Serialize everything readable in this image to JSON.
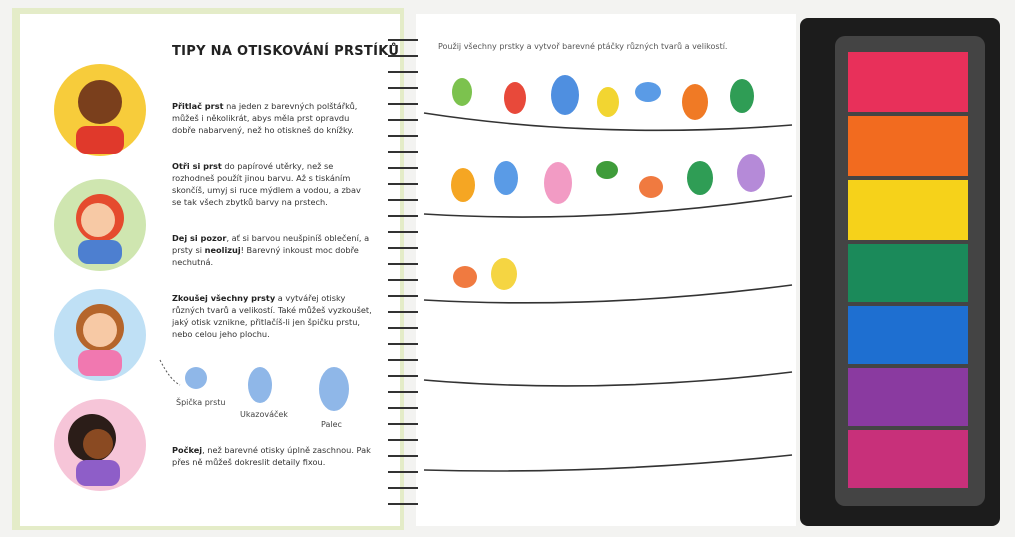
{
  "left_page": {
    "title": "TIPY NA OTISKOVÁNÍ PRSTÍKŮ",
    "tips": [
      {
        "parts": [
          {
            "text": "Přitlač prst",
            "bold": true
          },
          {
            "text": " na jeden z barevných polštářků, můžeš i několikrát, abys měla prst opravdu dobře nabarvený, než ho otiskneš do knížky.",
            "bold": false
          }
        ]
      },
      {
        "parts": [
          {
            "text": "Otři si prst",
            "bold": true
          },
          {
            "text": " do papírové utěrky, než se rozhodneš použít jinou barvu. Až s tiskáním skončíš, umyj si ruce mýdlem a vodou, a zbav se tak všech zbytků barvy na prstech.",
            "bold": false
          }
        ]
      },
      {
        "parts": [
          {
            "text": "Dej si pozor",
            "bold": true
          },
          {
            "text": ", ať si barvou neušpiníš oblečení, a prsty si ",
            "bold": false
          },
          {
            "text": "neolizuj",
            "bold": true
          },
          {
            "text": "! Barevný inkoust moc dobře nechutná.",
            "bold": false
          }
        ]
      },
      {
        "parts": [
          {
            "text": "Zkoušej všechny prsty",
            "bold": true
          },
          {
            "text": " a vytvářej otisky různých tvarů a velikostí. Také můžeš vyzkoušet, jaký otisk vznikne, přitlačíš-li jen špičku prstu, nebo celou jeho plochu.",
            "bold": false
          }
        ]
      },
      {
        "parts": [
          {
            "text": "Počkej",
            "bold": true
          },
          {
            "text": ", než barevné otisky úplně zaschnou. Pak přes ně můžeš dokreslit detaily fixou.",
            "bold": false
          }
        ]
      }
    ],
    "print_labels": [
      "Špička prstu",
      "Ukazováček",
      "Palec"
    ]
  },
  "right_page": {
    "instruction": "Použij všechny prstky a vytvoř barevné ptáčky různých tvarů a velikostí."
  }
}
